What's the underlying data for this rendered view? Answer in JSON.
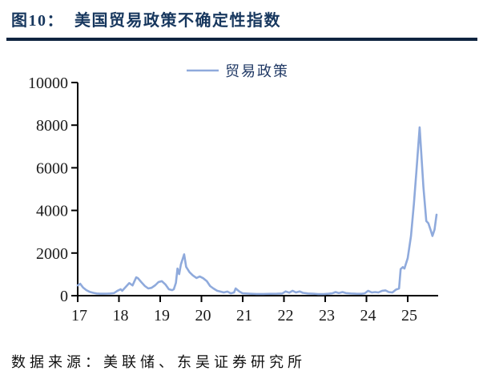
{
  "figure": {
    "title": "图10：  美国贸易政策不确定性指数",
    "source": "数据来源：美联储、东吴证券研究所"
  },
  "colors": {
    "title": "#17375e",
    "divider": "#0f2440",
    "axis": "#000000",
    "tick_label": "#1a1a1a",
    "line": "#8faadc",
    "legend_text": "#1f3864",
    "source_text": "#111111",
    "background": "#ffffff"
  },
  "chart_data": {
    "type": "line",
    "title": "美国贸易政策不确定性指数",
    "xlabel": "",
    "ylabel": "",
    "grid": false,
    "legend_position": "top-center",
    "legend": [
      "贸易政策"
    ],
    "x_ticks": [
      17,
      18,
      19,
      20,
      21,
      22,
      23,
      24,
      25
    ],
    "x_range": [
      17,
      25.75
    ],
    "y_ticks": [
      0,
      2000,
      4000,
      6000,
      8000,
      10000
    ],
    "ylim": [
      0,
      10000
    ],
    "series": [
      {
        "name": "贸易政策",
        "x": [
          17.0,
          17.06,
          17.13,
          17.21,
          17.29,
          17.38,
          17.46,
          17.54,
          17.63,
          17.71,
          17.79,
          17.88,
          17.96,
          18.04,
          18.08,
          18.17,
          18.25,
          18.33,
          18.42,
          18.46,
          18.54,
          18.63,
          18.71,
          18.79,
          18.88,
          18.96,
          19.04,
          19.13,
          19.21,
          19.29,
          19.33,
          19.38,
          19.42,
          19.46,
          19.5,
          19.58,
          19.63,
          19.71,
          19.79,
          19.88,
          19.96,
          20.04,
          20.13,
          20.21,
          20.29,
          20.38,
          20.46,
          20.54,
          20.63,
          20.71,
          20.79,
          20.83,
          20.92,
          21.0,
          21.17,
          21.33,
          21.5,
          21.67,
          21.83,
          21.96,
          22.04,
          22.13,
          22.21,
          22.29,
          22.38,
          22.46,
          22.58,
          22.71,
          22.83,
          22.96,
          23.08,
          23.17,
          23.25,
          23.33,
          23.42,
          23.5,
          23.63,
          23.75,
          23.88,
          23.96,
          24.04,
          24.13,
          24.21,
          24.29,
          24.38,
          24.46,
          24.54,
          24.63,
          24.71,
          24.79,
          24.83,
          24.88,
          24.92,
          25.0,
          25.08,
          25.15,
          25.21,
          25.29,
          25.38,
          25.45,
          25.5,
          25.56,
          25.6,
          25.65,
          25.7
        ],
        "values": [
          480,
          560,
          380,
          260,
          180,
          130,
          100,
          90,
          90,
          95,
          100,
          120,
          220,
          300,
          230,
          420,
          590,
          480,
          860,
          820,
          640,
          450,
          340,
          370,
          490,
          640,
          680,
          520,
          300,
          260,
          300,
          600,
          1270,
          1010,
          1460,
          1940,
          1350,
          1100,
          950,
          830,
          900,
          820,
          680,
          450,
          340,
          230,
          190,
          150,
          190,
          110,
          150,
          340,
          190,
          110,
          90,
          80,
          80,
          85,
          90,
          100,
          200,
          140,
          230,
          150,
          200,
          130,
          100,
          90,
          70,
          70,
          90,
          110,
          170,
          120,
          170,
          120,
          100,
          90,
          85,
          110,
          230,
          150,
          170,
          150,
          230,
          250,
          170,
          150,
          280,
          340,
          1250,
          1340,
          1270,
          1760,
          2800,
          4300,
          5800,
          7900,
          5100,
          3500,
          3400,
          3060,
          2800,
          3100,
          3800
        ]
      }
    ]
  }
}
